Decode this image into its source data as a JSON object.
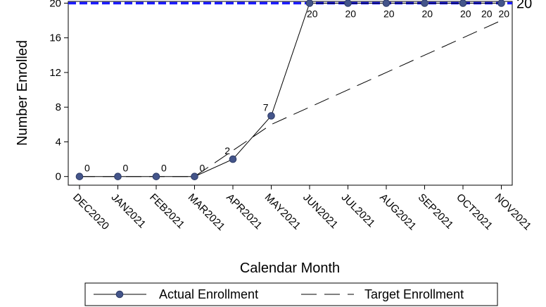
{
  "chart_data": {
    "type": "line",
    "xlabel": "Calendar Month",
    "ylabel": "Number Enrolled",
    "categories": [
      "DEC2020",
      "JAN2021",
      "FEB2021",
      "MAR2021",
      "APR2021",
      "MAY2021",
      "JUN2021",
      "JUL2021",
      "AUG2021",
      "SEP2021",
      "OCT2021",
      "NOV2021"
    ],
    "yticks": [
      0,
      4,
      8,
      12,
      16,
      20
    ],
    "ylim": [
      -1,
      20.2
    ],
    "grid": false,
    "series": [
      {
        "name": "Actual Enrollment",
        "values": [
          0,
          0,
          0,
          0,
          2,
          7,
          20,
          20,
          20,
          20,
          20,
          20
        ],
        "labels": [
          "0",
          "0",
          "0",
          "0",
          "2",
          "7",
          "20",
          "20",
          "20",
          "20",
          "20",
          "20"
        ],
        "color": "#44558a",
        "style": "solid-with-markers"
      },
      {
        "name": "Target Enrollment",
        "values": [
          0,
          0,
          0,
          0,
          3,
          6,
          8,
          10,
          12,
          14,
          16,
          18
        ],
        "labels": [
          "",
          "",
          "",
          "",
          "",
          "",
          "",
          "",
          "",
          "",
          "20",
          ""
        ],
        "color": "#000000",
        "style": "long-dash"
      }
    ],
    "reference_line": {
      "value": 20,
      "label": "20",
      "color": "#1a1aff",
      "style": "dashed"
    },
    "legend": {
      "position": "bottom",
      "entries": [
        "Actual Enrollment",
        "Target Enrollment"
      ]
    }
  }
}
